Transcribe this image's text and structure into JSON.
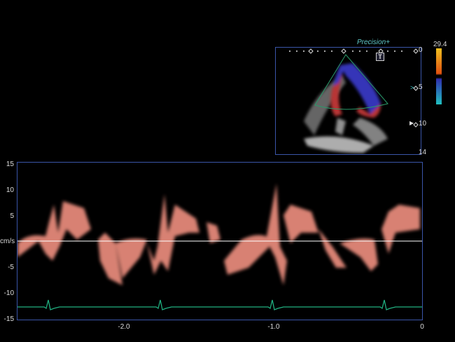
{
  "echo": {
    "brand": "Precision+",
    "mode_badge": "T",
    "depth_labels": [
      "0",
      "5",
      "10",
      "14"
    ],
    "color_scale_max": "29.4",
    "colors": {
      "frame": "#3a55a8",
      "sector": "#2a9a6a",
      "flow_toward": "#c43030",
      "flow_away": "#3030b0"
    }
  },
  "doppler": {
    "unit_label": "cm/s",
    "y_ticks": [
      "15",
      "10",
      "5",
      "-5",
      "-10",
      "-15"
    ],
    "x_ticks": [
      "-2.0",
      "-1.0",
      "0"
    ],
    "colors": {
      "spectrum": "#f09080",
      "baseline": "#ffffff",
      "ecg": "#20b080"
    }
  }
}
